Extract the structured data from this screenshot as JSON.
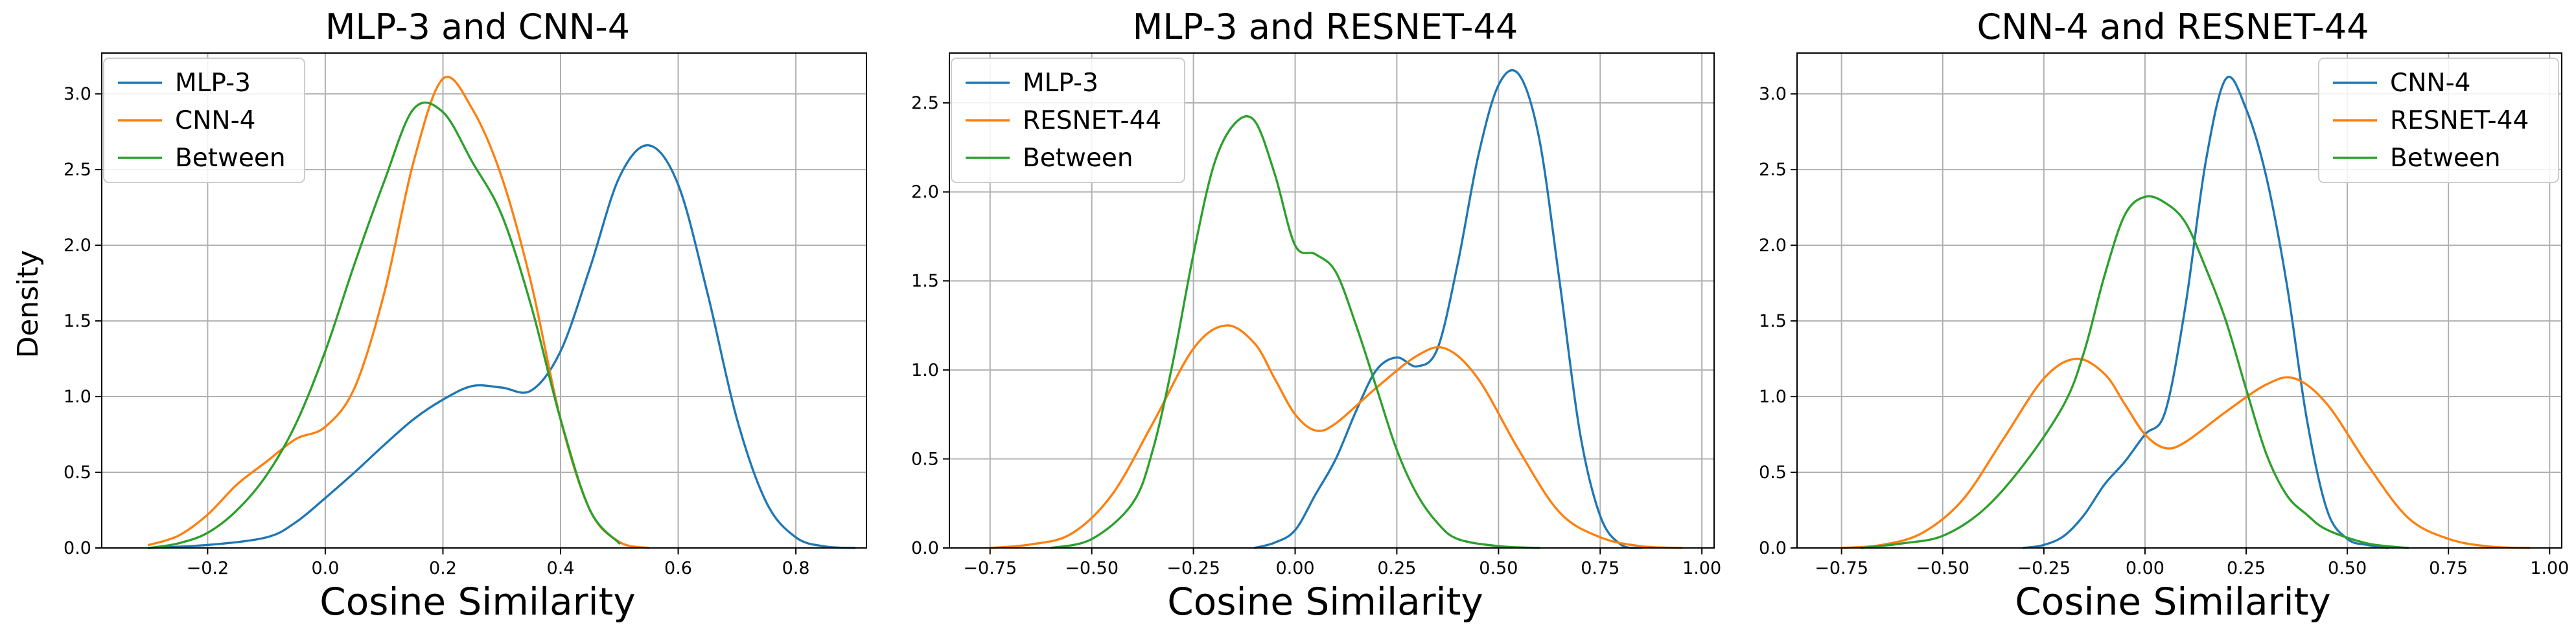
{
  "chart_data": [
    {
      "type": "line",
      "kind": "kde-density",
      "title": "MLP-3 and CNN-4",
      "xlabel": "Cosine Similarity",
      "ylabel": "Density",
      "xlim": [
        -0.38,
        0.92
      ],
      "ylim": [
        0,
        3.27
      ],
      "xticks": [
        -0.2,
        0.0,
        0.2,
        0.4,
        0.6,
        0.8
      ],
      "xtick_labels": [
        "−0.2",
        "0.0",
        "0.2",
        "0.4",
        "0.6",
        "0.8"
      ],
      "yticks": [
        0.0,
        0.5,
        1.0,
        1.5,
        2.0,
        2.5,
        3.0
      ],
      "ytick_labels": [
        "0.0",
        "0.5",
        "1.0",
        "1.5",
        "2.0",
        "2.5",
        "3.0"
      ],
      "grid": true,
      "legend_position": "top-left",
      "series": [
        {
          "name": "MLP-3",
          "color": "#1f77b4",
          "x": [
            -0.3,
            -0.2,
            -0.1,
            -0.05,
            0.0,
            0.05,
            0.1,
            0.15,
            0.2,
            0.25,
            0.3,
            0.35,
            0.4,
            0.45,
            0.5,
            0.55,
            0.6,
            0.65,
            0.7,
            0.75,
            0.8,
            0.85,
            0.9
          ],
          "y": [
            0.0,
            0.02,
            0.07,
            0.17,
            0.33,
            0.5,
            0.68,
            0.85,
            0.98,
            1.07,
            1.06,
            1.04,
            1.3,
            1.85,
            2.45,
            2.66,
            2.4,
            1.68,
            0.85,
            0.3,
            0.07,
            0.01,
            0.0
          ]
        },
        {
          "name": "CNN-4",
          "color": "#ff7f0e",
          "x": [
            -0.3,
            -0.25,
            -0.2,
            -0.15,
            -0.1,
            -0.05,
            0.0,
            0.05,
            0.1,
            0.15,
            0.2,
            0.25,
            0.3,
            0.35,
            0.4,
            0.45,
            0.5,
            0.55
          ],
          "y": [
            0.02,
            0.08,
            0.22,
            0.42,
            0.57,
            0.72,
            0.8,
            1.06,
            1.68,
            2.55,
            3.1,
            2.9,
            2.45,
            1.75,
            0.85,
            0.25,
            0.04,
            0.0
          ]
        },
        {
          "name": "Between",
          "color": "#2ca02c",
          "x": [
            -0.3,
            -0.25,
            -0.2,
            -0.15,
            -0.1,
            -0.05,
            0.0,
            0.05,
            0.1,
            0.15,
            0.2,
            0.25,
            0.3,
            0.35,
            0.4,
            0.45,
            0.5
          ],
          "y": [
            0.0,
            0.03,
            0.1,
            0.25,
            0.48,
            0.82,
            1.3,
            1.88,
            2.42,
            2.9,
            2.88,
            2.55,
            2.2,
            1.6,
            0.85,
            0.25,
            0.03
          ]
        }
      ]
    },
    {
      "type": "line",
      "kind": "kde-density",
      "title": "MLP-3 and RESNET-44",
      "xlabel": "Cosine Similarity",
      "ylabel": "",
      "xlim": [
        -0.85,
        1.03
      ],
      "ylim": [
        0,
        2.78
      ],
      "xticks": [
        -0.75,
        -0.5,
        -0.25,
        0.0,
        0.25,
        0.5,
        0.75,
        1.0
      ],
      "xtick_labels": [
        "−0.75",
        "−0.50",
        "−0.25",
        "0.00",
        "0.25",
        "0.50",
        "0.75",
        "1.00"
      ],
      "yticks": [
        0.0,
        0.5,
        1.0,
        1.5,
        2.0,
        2.5
      ],
      "ytick_labels": [
        "0.0",
        "0.5",
        "1.0",
        "1.5",
        "2.0",
        "2.5"
      ],
      "grid": true,
      "legend_position": "top-left",
      "series": [
        {
          "name": "MLP-3",
          "color": "#1f77b4",
          "x": [
            -0.1,
            -0.05,
            0.0,
            0.05,
            0.1,
            0.15,
            0.2,
            0.25,
            0.3,
            0.35,
            0.4,
            0.45,
            0.5,
            0.55,
            0.6,
            0.65,
            0.7,
            0.75,
            0.8,
            0.85
          ],
          "y": [
            0.0,
            0.03,
            0.1,
            0.3,
            0.5,
            0.77,
            1.0,
            1.07,
            1.02,
            1.12,
            1.6,
            2.2,
            2.6,
            2.66,
            2.3,
            1.5,
            0.65,
            0.18,
            0.02,
            0.0
          ]
        },
        {
          "name": "RESNET-44",
          "color": "#ff7f0e",
          "x": [
            -0.75,
            -0.65,
            -0.55,
            -0.45,
            -0.35,
            -0.25,
            -0.17,
            -0.1,
            -0.05,
            0.0,
            0.05,
            0.1,
            0.2,
            0.3,
            0.37,
            0.45,
            0.55,
            0.65,
            0.75,
            0.85,
            0.95
          ],
          "y": [
            0.0,
            0.02,
            0.08,
            0.3,
            0.7,
            1.12,
            1.25,
            1.15,
            0.95,
            0.75,
            0.66,
            0.7,
            0.9,
            1.08,
            1.12,
            0.95,
            0.55,
            0.2,
            0.06,
            0.01,
            0.0
          ]
        },
        {
          "name": "Between",
          "color": "#2ca02c",
          "x": [
            -0.6,
            -0.5,
            -0.4,
            -0.35,
            -0.3,
            -0.25,
            -0.2,
            -0.15,
            -0.1,
            -0.05,
            0.0,
            0.05,
            0.1,
            0.15,
            0.2,
            0.25,
            0.3,
            0.35,
            0.4,
            0.5,
            0.6
          ],
          "y": [
            0.0,
            0.05,
            0.25,
            0.55,
            1.05,
            1.65,
            2.15,
            2.38,
            2.4,
            2.1,
            1.7,
            1.65,
            1.55,
            1.25,
            0.9,
            0.55,
            0.3,
            0.14,
            0.05,
            0.01,
            0.0
          ]
        }
      ]
    },
    {
      "type": "line",
      "kind": "kde-density",
      "title": "CNN-4 and RESNET-44",
      "xlabel": "Cosine Similarity",
      "ylabel": "",
      "xlim": [
        -0.86,
        1.03
      ],
      "ylim": [
        0,
        3.27
      ],
      "xticks": [
        -0.75,
        -0.5,
        -0.25,
        0.0,
        0.25,
        0.5,
        0.75,
        1.0
      ],
      "xtick_labels": [
        "−0.75",
        "−0.50",
        "−0.25",
        "0.00",
        "0.25",
        "0.50",
        "0.75",
        "1.00"
      ],
      "yticks": [
        0.0,
        0.5,
        1.0,
        1.5,
        2.0,
        2.5,
        3.0
      ],
      "ytick_labels": [
        "0.0",
        "0.5",
        "1.0",
        "1.5",
        "2.0",
        "2.5",
        "3.0"
      ],
      "grid": true,
      "legend_position": "top-right",
      "series": [
        {
          "name": "CNN-4",
          "color": "#1f77b4",
          "x": [
            -0.3,
            -0.25,
            -0.2,
            -0.15,
            -0.1,
            -0.05,
            0.0,
            0.05,
            0.1,
            0.15,
            0.2,
            0.25,
            0.3,
            0.35,
            0.4,
            0.45,
            0.5,
            0.55,
            0.6
          ],
          "y": [
            0.0,
            0.02,
            0.08,
            0.22,
            0.42,
            0.57,
            0.75,
            0.9,
            1.6,
            2.55,
            3.1,
            2.9,
            2.45,
            1.75,
            0.85,
            0.25,
            0.06,
            0.02,
            0.0
          ]
        },
        {
          "name": "RESNET-44",
          "color": "#ff7f0e",
          "x": [
            -0.75,
            -0.65,
            -0.55,
            -0.45,
            -0.35,
            -0.25,
            -0.17,
            -0.1,
            -0.05,
            0.0,
            0.05,
            0.1,
            0.2,
            0.3,
            0.37,
            0.45,
            0.55,
            0.65,
            0.75,
            0.85,
            0.95
          ],
          "y": [
            0.0,
            0.02,
            0.1,
            0.32,
            0.72,
            1.12,
            1.25,
            1.15,
            0.95,
            0.75,
            0.66,
            0.7,
            0.9,
            1.08,
            1.12,
            0.95,
            0.55,
            0.2,
            0.06,
            0.01,
            0.0
          ]
        },
        {
          "name": "Between",
          "color": "#2ca02c",
          "x": [
            -0.7,
            -0.6,
            -0.5,
            -0.4,
            -0.3,
            -0.2,
            -0.15,
            -0.1,
            -0.05,
            0.0,
            0.05,
            0.1,
            0.15,
            0.2,
            0.25,
            0.3,
            0.35,
            0.4,
            0.45,
            0.55,
            0.65
          ],
          "y": [
            0.0,
            0.03,
            0.08,
            0.25,
            0.55,
            0.95,
            1.3,
            1.8,
            2.2,
            2.32,
            2.28,
            2.15,
            1.85,
            1.5,
            1.05,
            0.62,
            0.35,
            0.22,
            0.12,
            0.03,
            0.0
          ]
        }
      ]
    }
  ]
}
